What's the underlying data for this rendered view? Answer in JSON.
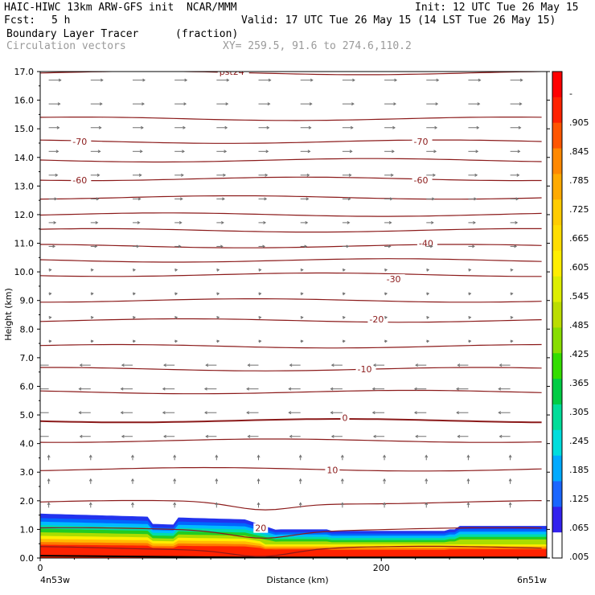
{
  "header": {
    "line1_left": "HAIC-HIWC 13km ARW-GFS init  NCAR/MMM",
    "line1_right": "Init: 12 UTC Tue 26 May 15",
    "fcst_label": "Fcst:",
    "fcst_value": "5 h",
    "valid": "Valid: 17 UTC Tue 26 May 15 (14 LST Tue 26 May 15)",
    "field_name": "Boundary Layer Tracer",
    "field_units": "(fraction)",
    "vectors_label": "Circulation vectors",
    "xy": "XY= 259.5, 91.6 to 274.6,110.2"
  },
  "colors": {
    "contour": "#8b1a1a",
    "vector": "#707070"
  },
  "chart_data": {
    "type": "heatmap",
    "title": "Boundary Layer Tracer (fraction)",
    "xlabel": "Distance (km)",
    "ylabel": "Height (km)",
    "xlim": [
      0,
      297
    ],
    "ylim": [
      0,
      17
    ],
    "y_ticks": [
      0.0,
      1.0,
      2.0,
      3.0,
      4.0,
      5.0,
      6.0,
      7.0,
      8.0,
      9.0,
      10.0,
      11.0,
      12.0,
      13.0,
      14.0,
      15.0,
      16.0,
      17.0
    ],
    "x_ticks": [
      0,
      200
    ],
    "x_end_labels": [
      "4n53w",
      "6n51w"
    ],
    "colorbar_labels": [
      ".005",
      ".065",
      ".125",
      ".185",
      ".245",
      ".305",
      ".365",
      ".425",
      ".485",
      ".545",
      ".605",
      ".665",
      ".725",
      ".785",
      ".845",
      ".905",
      "-"
    ],
    "colorbar_colors": [
      "#ffffff",
      "#3322ee",
      "#1a66ff",
      "#00aaff",
      "#00dddd",
      "#00dd99",
      "#00cc44",
      "#33dd00",
      "#88dd00",
      "#bbdd00",
      "#ddee00",
      "#ffee00",
      "#ffdd00",
      "#ffcc00",
      "#ffaa00",
      "#ff8800",
      "#ff5500",
      "#ff2200",
      "#ff0000"
    ],
    "contour_labels": [
      {
        "text": "-70",
        "x": 19,
        "y": 14.55
      },
      {
        "text": "-70",
        "x": 219,
        "y": 14.55
      },
      {
        "text": "-60",
        "x": 19,
        "y": 13.2
      },
      {
        "text": "-60",
        "x": 219,
        "y": 13.2
      },
      {
        "text": "-40",
        "x": 222,
        "y": 11.0
      },
      {
        "text": "-30",
        "x": 203,
        "y": 9.75
      },
      {
        "text": "-20",
        "x": 193,
        "y": 8.35
      },
      {
        "text": "-10",
        "x": 186,
        "y": 6.6
      },
      {
        "text": "0",
        "x": 177,
        "y": 4.9
      },
      {
        "text": "10",
        "x": 168,
        "y": 3.07
      },
      {
        "text": "20",
        "x": 126,
        "y": 1.05
      },
      {
        "text": "pst24",
        "x": 105,
        "y": 17.0
      }
    ],
    "contour_levels_y": [
      16.95,
      15.35,
      14.55,
      13.9,
      13.25,
      12.6,
      12.0,
      11.45,
      10.9,
      10.4,
      9.9,
      9.0,
      8.3,
      7.4,
      6.6,
      5.8,
      4.8,
      4.1,
      3.1,
      1.95,
      1.0,
      0.35
    ]
  }
}
